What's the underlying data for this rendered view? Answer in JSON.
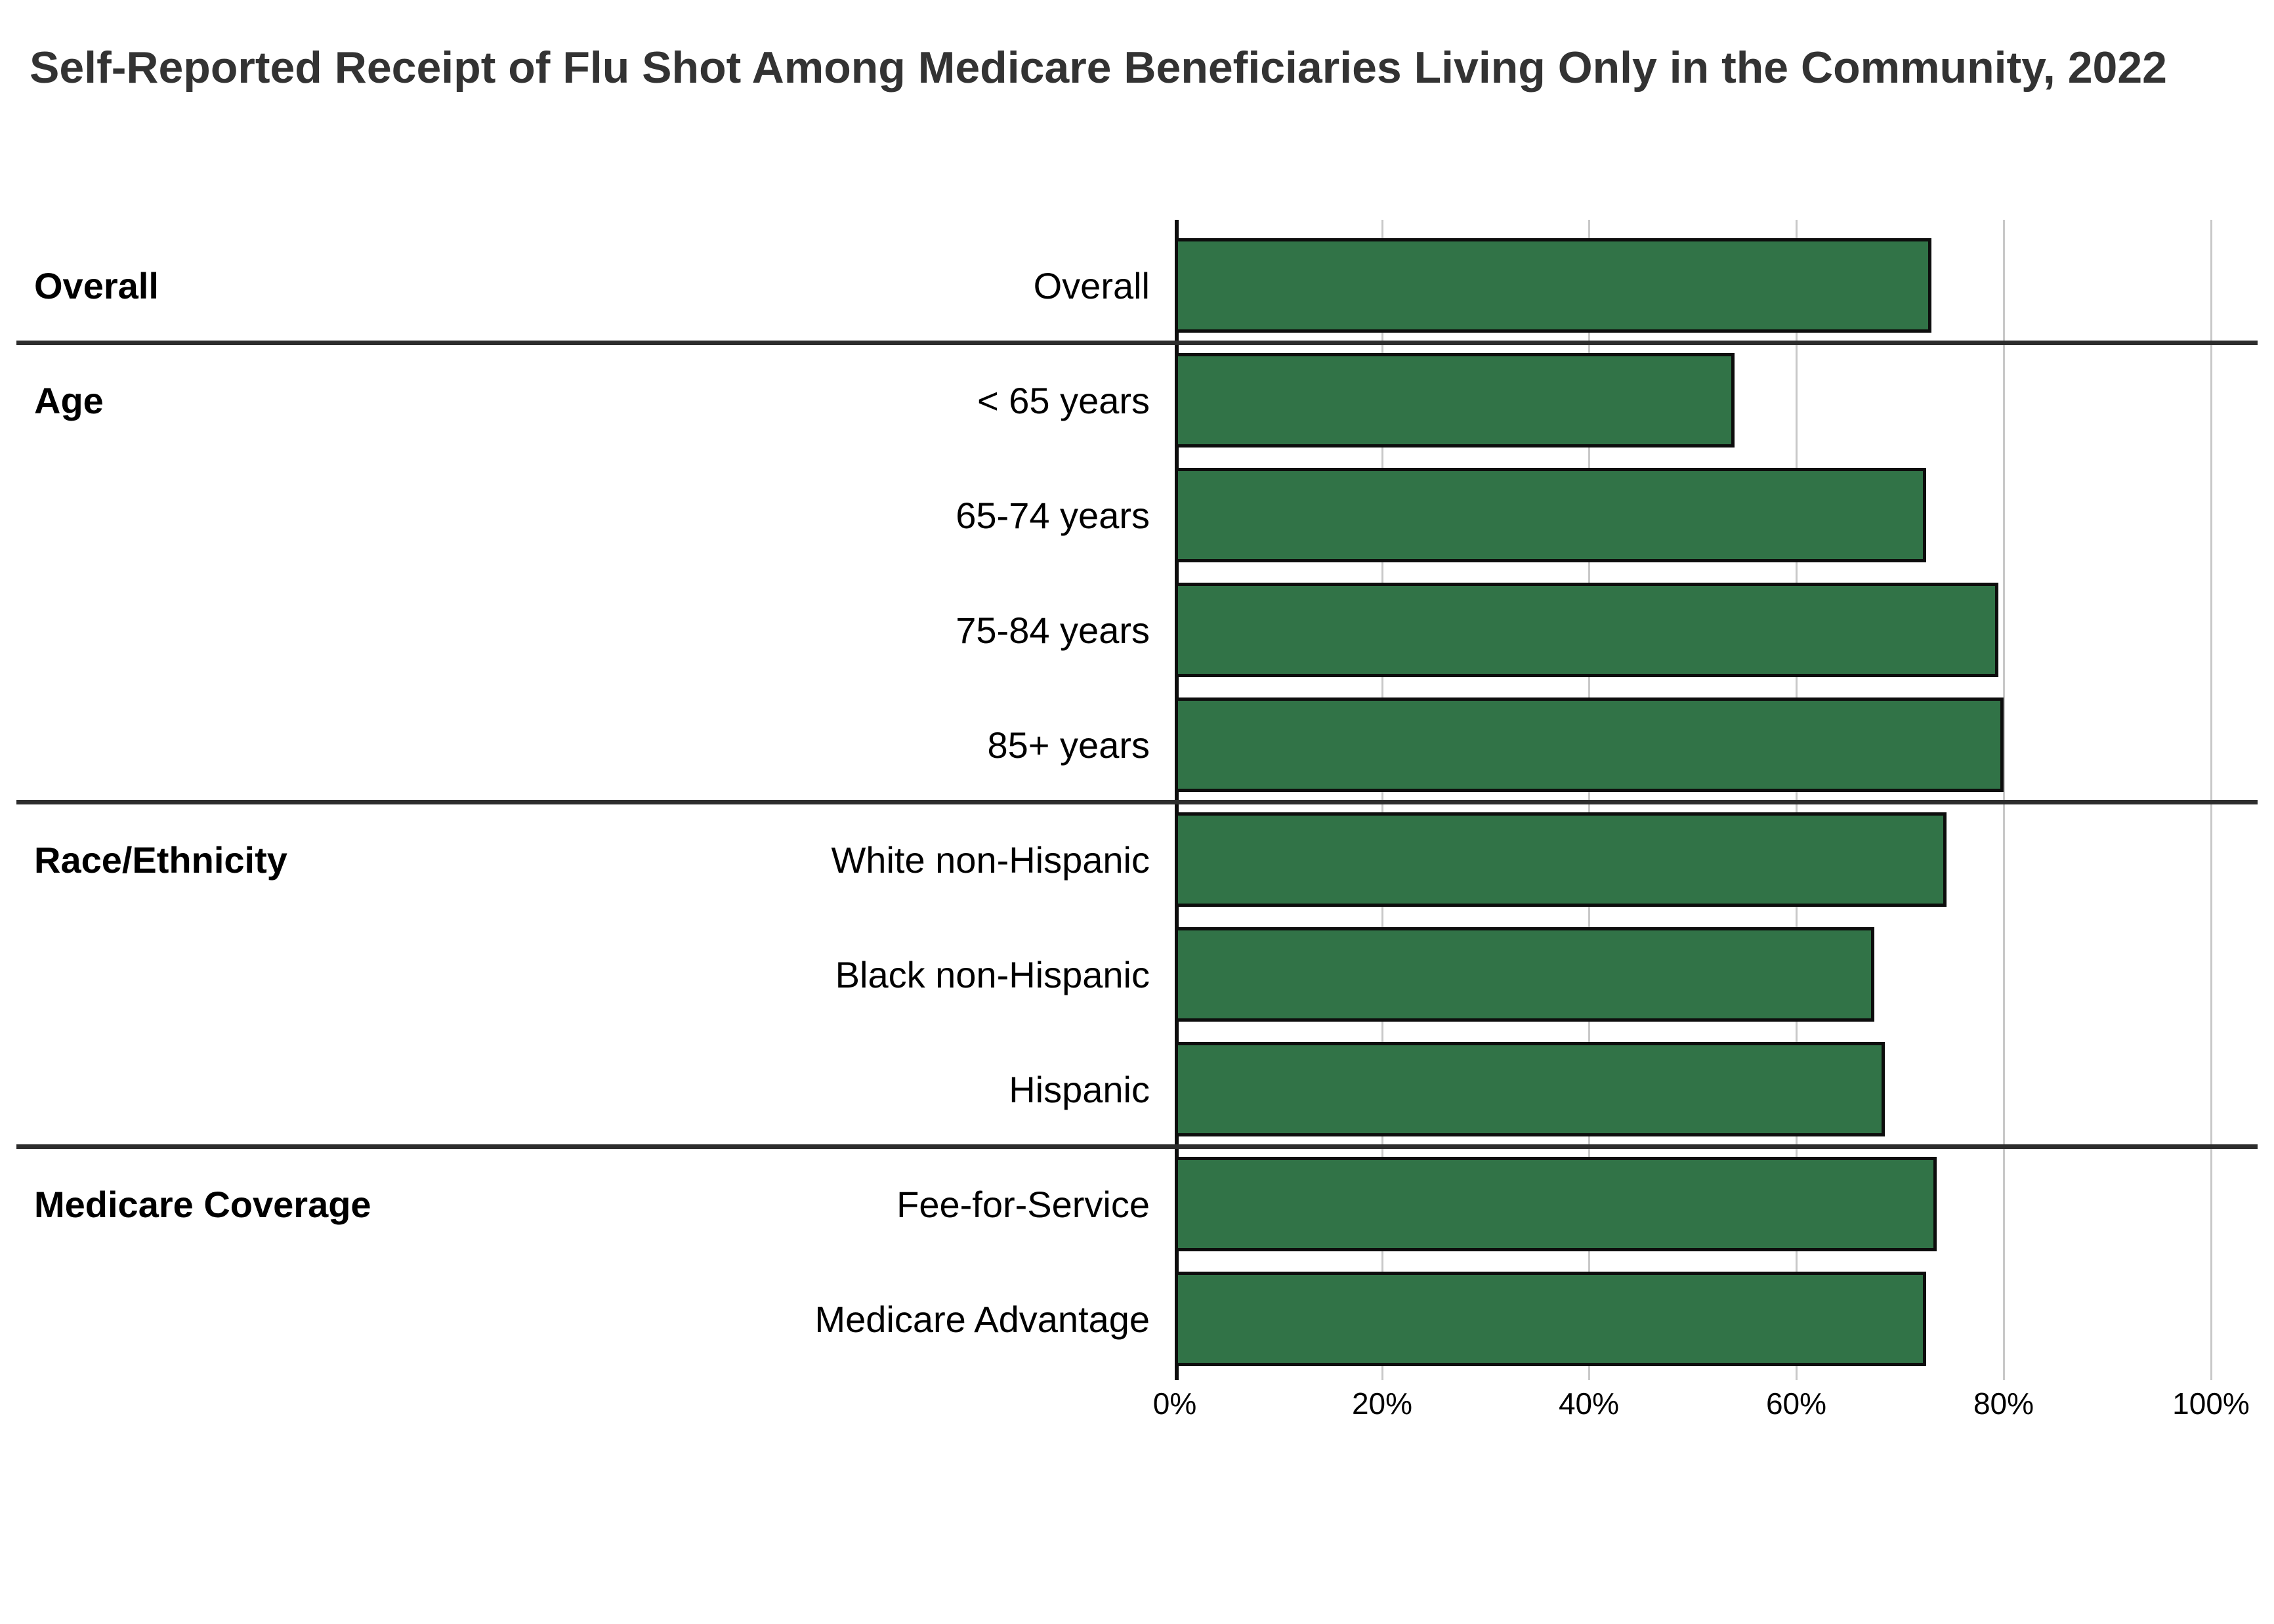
{
  "title": "Self-Reported Receipt of Flu Shot Among Medicare Beneficiaries Living Only in the Community, 2022",
  "chart_data": {
    "type": "bar",
    "orientation": "horizontal",
    "title": "Self-Reported Receipt of Flu Shot Among Medicare Beneficiaries Living Only in the Community, 2022",
    "xlabel": "",
    "ylabel": "",
    "unit": "percent",
    "xlim": [
      0,
      100
    ],
    "x_tick_labels": [
      "0%",
      "20%",
      "40%",
      "60%",
      "80%",
      "100%"
    ],
    "grid": true,
    "legend": false,
    "bar_color": "#317347",
    "bar_border_color": "#0d0d0d",
    "categories": [
      "Overall",
      "< 65 years",
      "65-74 years",
      "75-84 years",
      "85+ years",
      "White non-Hispanic",
      "Black non-Hispanic",
      "Hispanic",
      "Fee-for-Service",
      "Medicare Advantage"
    ],
    "values": [
      73,
      54,
      72.5,
      79.5,
      80,
      74.5,
      67.5,
      68.5,
      73.5,
      72.5
    ],
    "groups": [
      {
        "label": "Overall",
        "categories": [
          "Overall"
        ],
        "values": [
          73
        ]
      },
      {
        "label": "Age",
        "categories": [
          "< 65 years",
          "65-74 years",
          "75-84 years",
          "85+ years"
        ],
        "values": [
          54,
          72.5,
          79.5,
          80
        ]
      },
      {
        "label": "Race/Ethnicity",
        "categories": [
          "White non-Hispanic",
          "Black non-Hispanic",
          "Hispanic"
        ],
        "values": [
          74.5,
          67.5,
          68.5
        ]
      },
      {
        "label": "Medicare Coverage",
        "categories": [
          "Fee-for-Service",
          "Medicare Advantage"
        ],
        "values": [
          73.5,
          72.5
        ]
      }
    ]
  }
}
